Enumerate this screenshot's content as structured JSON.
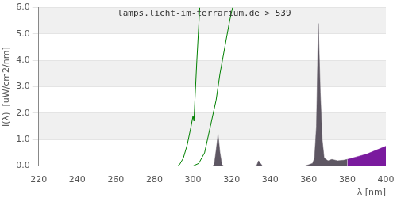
{
  "chart_data": {
    "type": "line",
    "title": "lamps.licht-im-terrarium.de > 539",
    "x_label": "λ [nm]",
    "y_label": "I(λ)  [uW/cm2/nm]",
    "xlim": [
      220,
      400
    ],
    "xticks": [
      220,
      240,
      260,
      280,
      300,
      320,
      340,
      360,
      380,
      400
    ],
    "ylim": [
      0,
      6
    ],
    "yticks": [
      {
        "value": 0,
        "label": "0.0"
      },
      {
        "value": 1,
        "label": "1.0"
      },
      {
        "value": 2,
        "label": "2.0"
      },
      {
        "value": 3,
        "label": "3.0"
      },
      {
        "value": 4,
        "label": "4.0"
      },
      {
        "value": 5,
        "label": "5.0"
      },
      {
        "value": 6,
        "label": "6.0"
      }
    ],
    "grid": true,
    "series": [
      {
        "type": "area",
        "color": "#5e5763",
        "x": [
          220,
          310,
          311,
          312,
          313,
          314,
          315,
          316,
          332,
          333,
          334,
          335,
          336,
          358,
          360,
          362,
          363,
          364,
          365,
          366,
          367,
          368,
          370,
          372,
          375,
          378,
          380
        ],
        "values": [
          0,
          0,
          0.05,
          0.6,
          1.2,
          0.5,
          0.05,
          0,
          0,
          0.02,
          0.2,
          0.1,
          0,
          0,
          0.05,
          0.1,
          0.3,
          1.5,
          5.4,
          2.8,
          1.0,
          0.3,
          0.2,
          0.25,
          0.2,
          0.22,
          0.25
        ]
      },
      {
        "type": "area",
        "color": "#7a1a9e",
        "x": [
          380,
          385,
          390,
          395,
          400
        ],
        "values": [
          0.25,
          0.35,
          0.45,
          0.6,
          0.75
        ]
      },
      {
        "type": "line",
        "color": "#008000",
        "x": [
          292,
          293,
          295,
          297,
          299,
          300,
          300.5,
          301,
          302,
          303.5
        ],
        "values": [
          0,
          0.05,
          0.3,
          0.8,
          1.5,
          1.9,
          1.7,
          2.5,
          4.0,
          6.0
        ]
      },
      {
        "type": "line",
        "color": "#008000",
        "x": [
          300,
          303,
          306,
          309,
          312,
          314,
          316.5,
          319,
          320.5
        ],
        "values": [
          0,
          0.1,
          0.5,
          1.5,
          2.5,
          3.5,
          4.5,
          5.5,
          6.0
        ]
      }
    ]
  }
}
